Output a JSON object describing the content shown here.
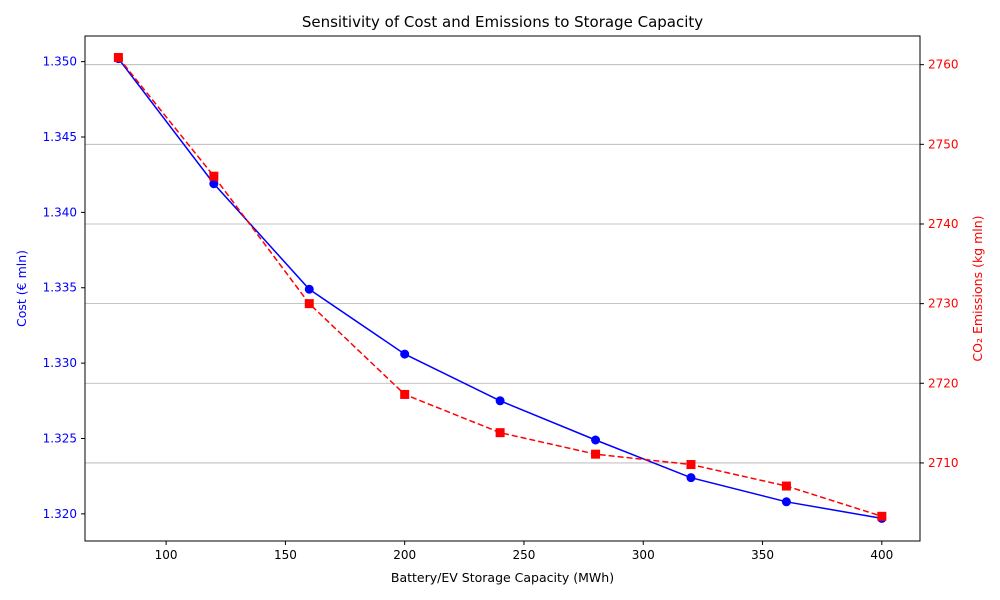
{
  "chart_data": {
    "type": "line",
    "title": "Sensitivity of Cost and Emissions to Storage Capacity",
    "xlabel": "Battery/EV Storage Capacity (MWh)",
    "ylabel_left": "Cost (€ mln)",
    "ylabel_right": "CO₂ Emissions (kg mln)",
    "x": [
      80,
      120,
      160,
      200,
      240,
      280,
      320,
      360,
      400
    ],
    "xlim": [
      66,
      416
    ],
    "xticks": [
      100,
      150,
      200,
      250,
      300,
      350,
      400
    ],
    "ylim_left": [
      1.3182,
      1.3517
    ],
    "yticks_left": [
      "1.320",
      "1.325",
      "1.330",
      "1.335",
      "1.340",
      "1.345",
      "1.350"
    ],
    "ylim_right": [
      2700.2,
      2763.6
    ],
    "yticks_right": [
      2710,
      2720,
      2730,
      2740,
      2750,
      2760
    ],
    "grid": "right-axis horizontal",
    "series": [
      {
        "axis": "left",
        "color": "#0000ff",
        "style": "solid",
        "marker": "circle",
        "values": [
          1.3502,
          1.3419,
          1.3349,
          1.3306,
          1.3275,
          1.3249,
          1.3224,
          1.3208,
          1.3197
        ]
      },
      {
        "axis": "right",
        "color": "#ff0000",
        "style": "dashed",
        "marker": "square",
        "values": [
          2760.9,
          2746.0,
          2730.0,
          2718.6,
          2713.8,
          2711.1,
          2709.8,
          2707.1,
          2703.3
        ]
      }
    ]
  }
}
